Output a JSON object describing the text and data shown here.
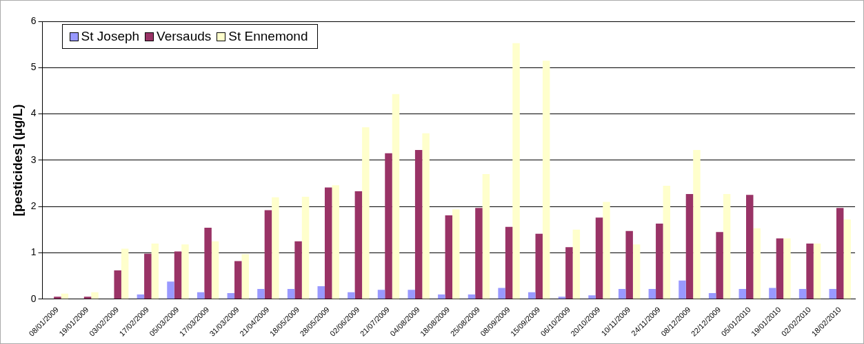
{
  "chart_data": {
    "type": "bar",
    "ylabel": "[pesticides] (µg/L)",
    "categories": [
      "08/01/2009",
      "19/01/2009",
      "03/02/2009",
      "17/02/2009",
      "05/03/2009",
      "17/03/2009",
      "31/03/2009",
      "21/04/2009",
      "18/05/2009",
      "28/05/2009",
      "02/06/2009",
      "21/07/2009",
      "04/08/2009",
      "18/08/2009",
      "25/08/2009",
      "08/09/2009",
      "15/09/2009",
      "06/10/2009",
      "20/10/2009",
      "10/11/2009",
      "24/11/2009",
      "08/12/2009",
      "22/12/2009",
      "05/01/2010",
      "19/01/2010",
      "02/02/2010",
      "18/02/2010"
    ],
    "series": [
      {
        "name": "St Joseph",
        "color": "#9999ff",
        "values": [
          0,
          0,
          0,
          0.1,
          0.38,
          0.15,
          0.13,
          0.22,
          0.22,
          0.28,
          0.15,
          0.2,
          0.2,
          0.1,
          0.1,
          0.24,
          0.15,
          0.05,
          0.08,
          0.22,
          0.22,
          0.4,
          0.13,
          0.22,
          0.24,
          0.22,
          0.22
        ]
      },
      {
        "name": "Versauds",
        "color": "#993366",
        "values": [
          0.05,
          0.05,
          0.62,
          0.98,
          1.03,
          1.54,
          0.82,
          1.92,
          1.25,
          2.41,
          2.33,
          3.15,
          3.22,
          1.81,
          1.97,
          1.56,
          1.41,
          1.12,
          1.76,
          1.47,
          1.63,
          2.27,
          1.45,
          2.25,
          1.31,
          1.2,
          1.97
        ]
      },
      {
        "name": "St Ennemond",
        "color": "#ffffcc",
        "values": [
          0.12,
          0.15,
          1.09,
          1.2,
          1.18,
          1.25,
          0.97,
          2.2,
          2.21,
          2.46,
          3.71,
          4.43,
          3.58,
          1.94,
          2.7,
          5.53,
          5.15,
          1.5,
          2.1,
          1.18,
          2.45,
          3.22,
          2.27,
          1.53,
          1.31,
          1.2,
          1.72
        ]
      }
    ],
    "ylim": [
      0,
      6
    ],
    "yticks": [
      0,
      1,
      2,
      3,
      4,
      5,
      6
    ],
    "grid": "y",
    "legend": "top left"
  }
}
